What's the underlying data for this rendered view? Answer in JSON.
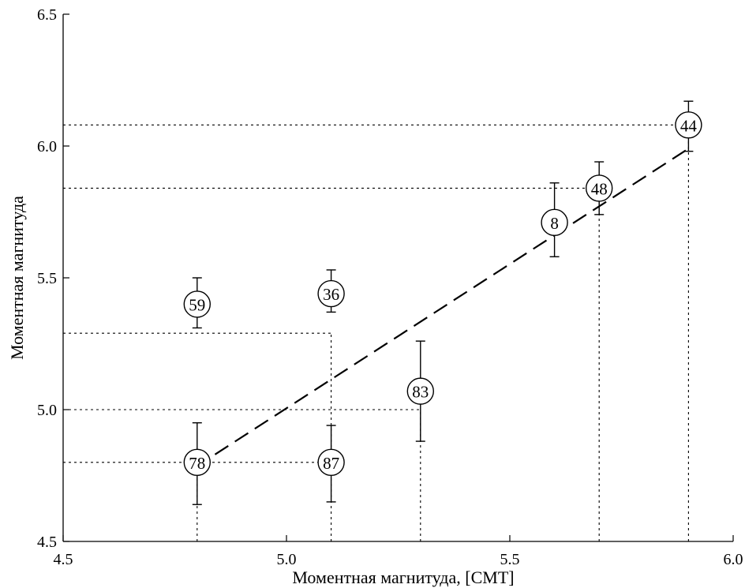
{
  "chart_data": {
    "type": "scatter",
    "title": "",
    "xlabel": "Моментная магнитуда, [CMT]",
    "ylabel": "Моментная магнитуда",
    "xlim": [
      4.5,
      6.0
    ],
    "ylim": [
      4.5,
      6.5
    ],
    "x_ticks": [
      "4.5",
      "5.0",
      "5.5",
      "6.0"
    ],
    "y_ticks": [
      "4.5",
      "5.0",
      "5.5",
      "6.0",
      "6.5"
    ],
    "points": [
      {
        "label": "78",
        "x": 4.8,
        "y": 4.8,
        "err_low": 4.64,
        "err_high": 4.95
      },
      {
        "label": "59",
        "x": 4.8,
        "y": 5.4,
        "err_low": 5.31,
        "err_high": 5.5
      },
      {
        "label": "36",
        "x": 5.1,
        "y": 5.44,
        "err_low": 5.37,
        "err_high": 5.53
      },
      {
        "label": "87",
        "x": 5.1,
        "y": 4.8,
        "err_low": 4.65,
        "err_high": 4.94
      },
      {
        "label": "83",
        "x": 5.3,
        "y": 5.07,
        "err_low": 4.88,
        "err_high": 5.26
      },
      {
        "label": "8",
        "x": 5.6,
        "y": 5.71,
        "err_low": 5.58,
        "err_high": 5.86
      },
      {
        "label": "48",
        "x": 5.7,
        "y": 5.84,
        "err_low": 5.74,
        "err_high": 5.94
      },
      {
        "label": "44",
        "x": 5.9,
        "y": 6.08,
        "err_low": 5.98,
        "err_high": 6.17
      }
    ],
    "fit_line": {
      "x": [
        4.84,
        5.9
      ],
      "y": [
        4.83,
        5.99
      ]
    },
    "reference_lines": [
      {
        "kind": "h",
        "y": 6.08,
        "from_x": 4.5,
        "to_x": 5.9
      },
      {
        "kind": "v",
        "x": 5.9,
        "from_y": 4.5,
        "to_y": 6.08
      },
      {
        "kind": "h",
        "y": 5.84,
        "from_x": 4.5,
        "to_x": 5.7
      },
      {
        "kind": "v",
        "x": 5.7,
        "from_y": 4.5,
        "to_y": 5.84
      },
      {
        "kind": "h",
        "y": 5.29,
        "from_x": 4.5,
        "to_x": 5.1
      },
      {
        "kind": "v",
        "x": 5.1,
        "from_y": 4.5,
        "to_y": 5.29
      },
      {
        "kind": "h",
        "y": 5.0,
        "from_x": 4.5,
        "to_x": 5.3
      },
      {
        "kind": "v",
        "x": 5.3,
        "from_y": 4.5,
        "to_y": 5.0
      },
      {
        "kind": "h",
        "y": 4.8,
        "from_x": 4.5,
        "to_x": 5.1
      },
      {
        "kind": "v",
        "x": 4.8,
        "from_y": 4.5,
        "to_y": 4.8
      }
    ],
    "grid": false,
    "legend": "none"
  }
}
